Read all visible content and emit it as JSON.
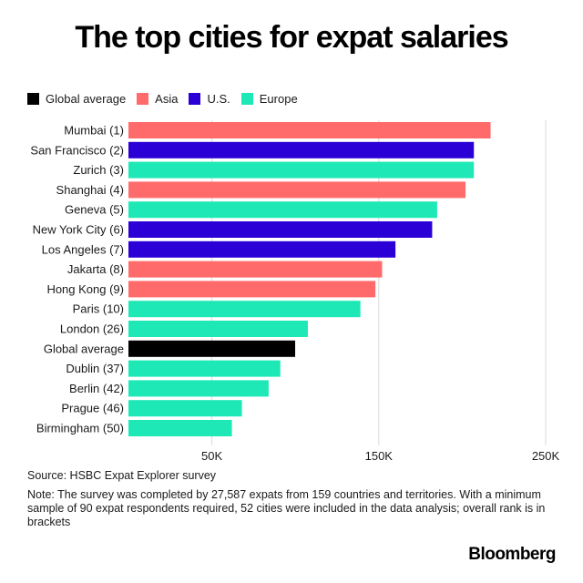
{
  "chart_data": {
    "type": "bar",
    "orientation": "horizontal",
    "title": "The top cities for expat salaries",
    "legend": [
      {
        "name": "Global average",
        "color": "#000000"
      },
      {
        "name": "Asia",
        "color": "#ff6b6b"
      },
      {
        "name": "U.S.",
        "color": "#2b00d6"
      },
      {
        "name": "Europe",
        "color": "#1ee8b6"
      }
    ],
    "legend_position": "top-left",
    "categories": [
      "Mumbai (1)",
      "San Francisco (2)",
      "Zurich (3)",
      "Shanghai (4)",
      "Geneva (5)",
      "New York City (6)",
      "Los Angeles (7)",
      "Jakarta (8)",
      "Hong Kong (9)",
      "Paris (10)",
      "London (26)",
      "Global average",
      "Dublin (37)",
      "Berlin (42)",
      "Prague (46)",
      "Birmingham (50)"
    ],
    "values": [
      217000,
      207000,
      207000,
      202000,
      185000,
      182000,
      160000,
      152000,
      148000,
      139000,
      107500,
      99900,
      91000,
      84000,
      68000,
      62000
    ],
    "groups": [
      "Asia",
      "U.S.",
      "Europe",
      "Asia",
      "Europe",
      "U.S.",
      "U.S.",
      "Asia",
      "Asia",
      "Europe",
      "Europe",
      "Global average",
      "Europe",
      "Europe",
      "Europe",
      "Europe"
    ],
    "xlim": [
      0,
      250000
    ],
    "xticks": [
      50000,
      150000,
      250000
    ],
    "xtick_labels": [
      "50K",
      "150K",
      "250K"
    ],
    "grid": true
  },
  "footer": {
    "source": "Source: HSBC Expat Explorer survey",
    "note": "Note: The survey was completed by 27,587 expats from 159 countries and territories. With a minimum sample of 90 expat respondents required, 52 cities were included in the data analysis; overall rank is in brackets",
    "brand": "Bloomberg"
  }
}
